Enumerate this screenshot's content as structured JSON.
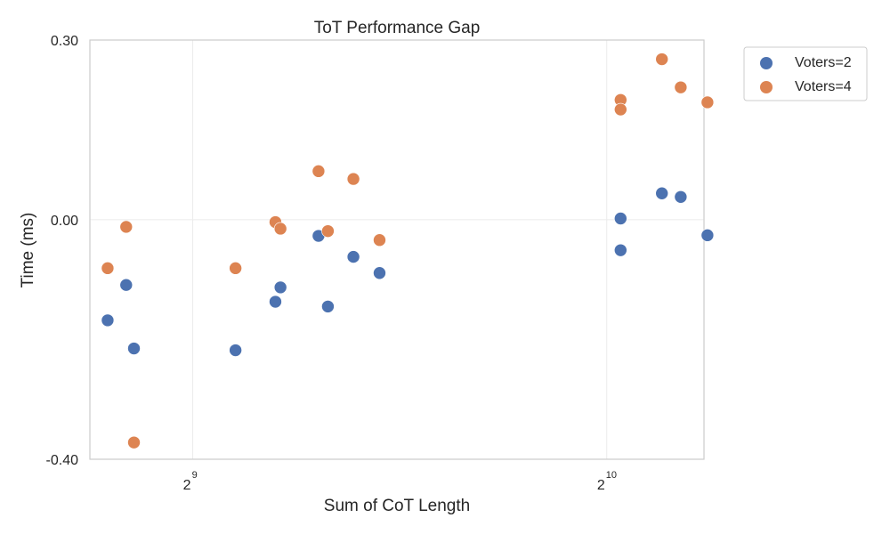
{
  "chart_data": {
    "type": "scatter",
    "title": "ToT Performance Gap",
    "xlabel": "Sum of CoT Length",
    "ylabel": "Time (ms)",
    "x_scale": "log2",
    "xlim": [
      431,
      1205
    ],
    "ylim": [
      -0.4,
      0.3
    ],
    "y_ticks": [
      "0.30",
      "0.00",
      "-0.40"
    ],
    "y_tick_values": [
      0.3,
      0.0,
      -0.4
    ],
    "x_ticks": [
      {
        "value": 512,
        "base": "2",
        "exponent": "9"
      },
      {
        "value": 1024,
        "base": "2",
        "exponent": "10"
      }
    ],
    "grid": true,
    "legend_position": "outside-top-right",
    "series": [
      {
        "name": "Voters=2",
        "color": "#4c72b0",
        "points": [
          {
            "x": 444,
            "y": -0.168
          },
          {
            "x": 458,
            "y": -0.109
          },
          {
            "x": 464,
            "y": -0.215
          },
          {
            "x": 550,
            "y": -0.218
          },
          {
            "x": 588,
            "y": -0.137
          },
          {
            "x": 593,
            "y": -0.113
          },
          {
            "x": 632,
            "y": -0.027
          },
          {
            "x": 642,
            "y": -0.145
          },
          {
            "x": 670,
            "y": -0.062
          },
          {
            "x": 700,
            "y": -0.089
          },
          {
            "x": 1048,
            "y": 0.002
          },
          {
            "x": 1048,
            "y": -0.051
          },
          {
            "x": 1123,
            "y": 0.044
          },
          {
            "x": 1159,
            "y": 0.038
          },
          {
            "x": 1212,
            "y": -0.026
          }
        ]
      },
      {
        "name": "Voters=4",
        "color": "#dd8452",
        "points": [
          {
            "x": 444,
            "y": -0.081
          },
          {
            "x": 458,
            "y": -0.012
          },
          {
            "x": 464,
            "y": -0.372
          },
          {
            "x": 550,
            "y": -0.081
          },
          {
            "x": 588,
            "y": -0.004
          },
          {
            "x": 593,
            "y": -0.015
          },
          {
            "x": 632,
            "y": 0.081
          },
          {
            "x": 642,
            "y": -0.019
          },
          {
            "x": 670,
            "y": 0.068
          },
          {
            "x": 700,
            "y": -0.034
          },
          {
            "x": 1048,
            "y": 0.2
          },
          {
            "x": 1048,
            "y": 0.184
          },
          {
            "x": 1123,
            "y": 0.268
          },
          {
            "x": 1159,
            "y": 0.221
          },
          {
            "x": 1212,
            "y": 0.196
          }
        ]
      }
    ]
  }
}
